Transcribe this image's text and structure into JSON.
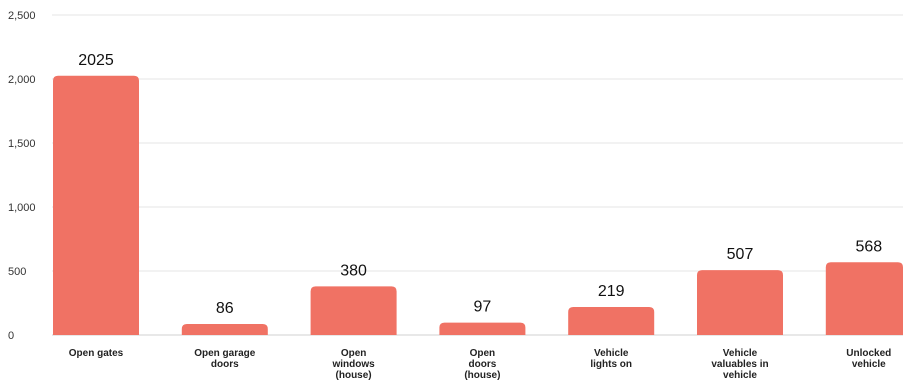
{
  "chart_data": {
    "type": "bar",
    "categories": [
      [
        "Open gates"
      ],
      [
        "Open garage",
        "doors"
      ],
      [
        "Open",
        "windows",
        "(house)"
      ],
      [
        "Open",
        "doors",
        "(house)"
      ],
      [
        "Vehicle",
        "lights on"
      ],
      [
        "Vehicle",
        "valuables in",
        "vehicle"
      ],
      [
        "Unlocked",
        "vehicle"
      ]
    ],
    "values": [
      2025,
      86,
      380,
      97,
      219,
      507,
      568
    ],
    "value_labels": [
      "2025",
      "86",
      "380",
      "97",
      "219",
      "507",
      "568"
    ],
    "y_ticks": [
      0,
      500,
      1000,
      1500,
      2000,
      2500
    ],
    "y_tick_labels": [
      "0",
      "500",
      "1,000",
      "1,500",
      "2,000",
      "2,500"
    ],
    "ylim": [
      0,
      2500
    ],
    "grid": true,
    "bar_color": "#f07264",
    "title": "",
    "xlabel": "",
    "ylabel": ""
  }
}
